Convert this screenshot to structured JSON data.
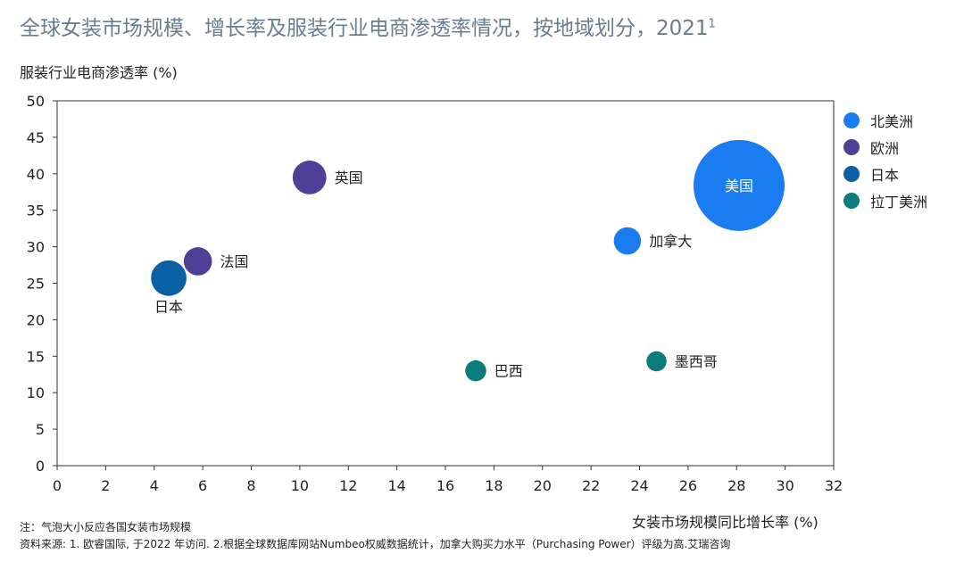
{
  "title": "全球女装市场规模、增长率及服装行业电商渗透率情况，按地域划分，2021",
  "title_sup": "1",
  "note": "注：气泡大小反应各国女装市场规模",
  "source": "资料来源: 1. 欧睿国际, 于2022 年访问. 2.根据全球数据库网站Numbeo权威数据统计，加拿大购买力水平（Purchasing Power）评级为高.艾瑞咨询",
  "chart_data": {
    "type": "bubble",
    "title": "全球女装市场规模、增长率及服装行业电商渗透率情况，按地域划分，2021",
    "xlabel": "女装市场规模同比增长率 (%)",
    "ylabel": "服装行业电商渗透率 (%)",
    "xlim": [
      0,
      32
    ],
    "ylim": [
      0,
      50
    ],
    "xticks": [
      0,
      2,
      4,
      6,
      8,
      10,
      12,
      14,
      16,
      18,
      20,
      22,
      24,
      26,
      28,
      30,
      32
    ],
    "yticks": [
      0,
      5,
      10,
      15,
      20,
      25,
      30,
      35,
      40,
      45,
      50
    ],
    "grid": false,
    "legend_position": "right",
    "legend": [
      {
        "name": "北美洲",
        "color": "#1a7cf0"
      },
      {
        "name": "欧洲",
        "color": "#4f3f96"
      },
      {
        "name": "日本",
        "color": "#0b5fa3"
      },
      {
        "name": "拉丁美洲",
        "color": "#0b7b7b"
      }
    ],
    "points": [
      {
        "label": "美国",
        "x": 28.1,
        "y": 38.4,
        "size": 1.0,
        "group": 0,
        "label_pos": "inside"
      },
      {
        "label": "加拿大",
        "x": 23.5,
        "y": 30.8,
        "size": 0.3,
        "group": 0,
        "label_pos": "right"
      },
      {
        "label": "英国",
        "x": 10.4,
        "y": 39.5,
        "size": 0.37,
        "group": 1,
        "label_pos": "right"
      },
      {
        "label": "法国",
        "x": 5.8,
        "y": 28.0,
        "size": 0.31,
        "group": 1,
        "label_pos": "right"
      },
      {
        "label": "日本",
        "x": 4.6,
        "y": 25.7,
        "size": 0.39,
        "group": 2,
        "label_pos": "below"
      },
      {
        "label": "巴西",
        "x": 17.25,
        "y": 13.0,
        "size": 0.23,
        "group": 3,
        "label_pos": "right"
      },
      {
        "label": "墨西哥",
        "x": 24.7,
        "y": 14.3,
        "size": 0.22,
        "group": 3,
        "label_pos": "right"
      }
    ]
  }
}
